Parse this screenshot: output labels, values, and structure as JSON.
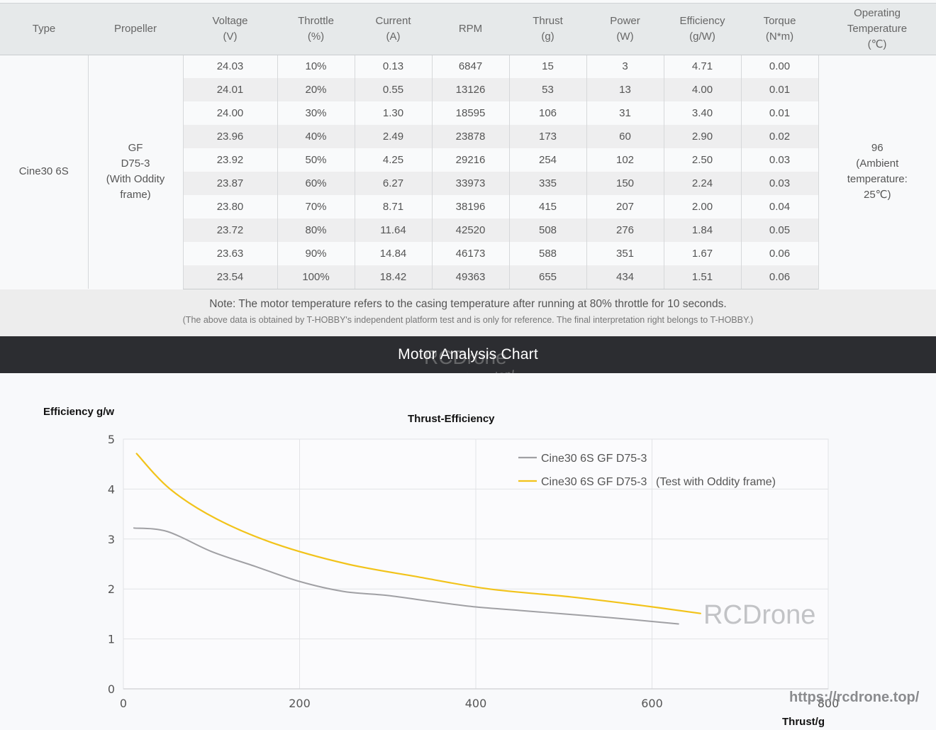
{
  "table": {
    "headers": [
      {
        "line1": "Type",
        "line2": ""
      },
      {
        "line1": "Propeller",
        "line2": ""
      },
      {
        "line1": "Voltage",
        "line2": "(V)"
      },
      {
        "line1": "Throttle",
        "line2": "(%)"
      },
      {
        "line1": "Current",
        "line2": "(A)"
      },
      {
        "line1": "RPM",
        "line2": ""
      },
      {
        "line1": "Thrust",
        "line2": "(g)"
      },
      {
        "line1": "Power",
        "line2": "(W)"
      },
      {
        "line1": "Efficiency",
        "line2": "(g/W)"
      },
      {
        "line1": "Torque",
        "line2": "(N*m)"
      },
      {
        "line1": "Operating",
        "line2": "Temperature",
        "line3": "(℃)"
      }
    ],
    "type": "Cine30 6S",
    "propeller": {
      "line1": "GF",
      "line2": "D75-3",
      "line3": "(With Oddity",
      "line4": "frame)"
    },
    "temperature": {
      "line1": "96",
      "line2": "(Ambient",
      "line3": "temperature:",
      "line4": "25℃)"
    },
    "rows": [
      [
        "24.03",
        "10%",
        "0.13",
        "6847",
        "15",
        "3",
        "4.71",
        "0.00"
      ],
      [
        "24.01",
        "20%",
        "0.55",
        "13126",
        "53",
        "13",
        "4.00",
        "0.01"
      ],
      [
        "24.00",
        "30%",
        "1.30",
        "18595",
        "106",
        "31",
        "3.40",
        "0.01"
      ],
      [
        "23.96",
        "40%",
        "2.49",
        "23878",
        "173",
        "60",
        "2.90",
        "0.02"
      ],
      [
        "23.92",
        "50%",
        "4.25",
        "29216",
        "254",
        "102",
        "2.50",
        "0.03"
      ],
      [
        "23.87",
        "60%",
        "6.27",
        "33973",
        "335",
        "150",
        "2.24",
        "0.03"
      ],
      [
        "23.80",
        "70%",
        "8.71",
        "38196",
        "415",
        "207",
        "2.00",
        "0.04"
      ],
      [
        "23.72",
        "80%",
        "11.64",
        "42520",
        "508",
        "276",
        "1.84",
        "0.05"
      ],
      [
        "23.63",
        "90%",
        "14.84",
        "46173",
        "588",
        "351",
        "1.67",
        "0.06"
      ],
      [
        "23.54",
        "100%",
        "18.42",
        "49363",
        "655",
        "434",
        "1.51",
        "0.06"
      ]
    ]
  },
  "note": {
    "line1": "Note: The motor temperature refers to the casing temperature after running at 80% throttle for 10 seconds.",
    "line2": "(The above data is obtained by T-HOBBY's independent platform test and is only for reference. The final interpretation right belongs to T-HOBBY.)"
  },
  "section_title": "Motor Analysis Chart",
  "watermarks": {
    "brand": "RCDrone",
    "url": "https://rcdrone.top/"
  },
  "chart_data": {
    "type": "line",
    "title": "Thrust-Efficiency",
    "xlabel": "Thrust/g",
    "ylabel": "Efficiency g/w",
    "xlim": [
      0,
      800
    ],
    "ylim": [
      0,
      5
    ],
    "xticks": [
      "0",
      "200",
      "400",
      "600",
      "800"
    ],
    "yticks": [
      "0",
      "1",
      "2",
      "3",
      "4",
      "5"
    ],
    "grid": true,
    "legend_position": "top-right inside",
    "series": [
      {
        "name": "Cine30 6S GF  D75-3",
        "color": "#a0a0a4",
        "x": [
          12,
          50,
          100,
          150,
          200,
          250,
          300,
          350,
          400,
          450,
          500,
          550,
          600,
          630
        ],
        "y": [
          3.22,
          3.15,
          2.75,
          2.45,
          2.15,
          1.95,
          1.87,
          1.75,
          1.64,
          1.57,
          1.5,
          1.43,
          1.35,
          1.3
        ]
      },
      {
        "name": "Cine30 6S GF D75-3   (Test with Oddity frame)",
        "color": "#f2c31a",
        "x": [
          15,
          53,
          106,
          173,
          254,
          335,
          415,
          508,
          588,
          655
        ],
        "y": [
          4.71,
          4.0,
          3.4,
          2.9,
          2.5,
          2.24,
          2.0,
          1.84,
          1.67,
          1.51
        ]
      }
    ],
    "legend": [
      {
        "label": "Cine30 6S GF  D75-3",
        "color": "#a0a0a4"
      },
      {
        "label": "Cine30 6S GF D75-3",
        "suffix": "(Test with Oddity frame)",
        "color": "#f2c31a"
      }
    ]
  }
}
